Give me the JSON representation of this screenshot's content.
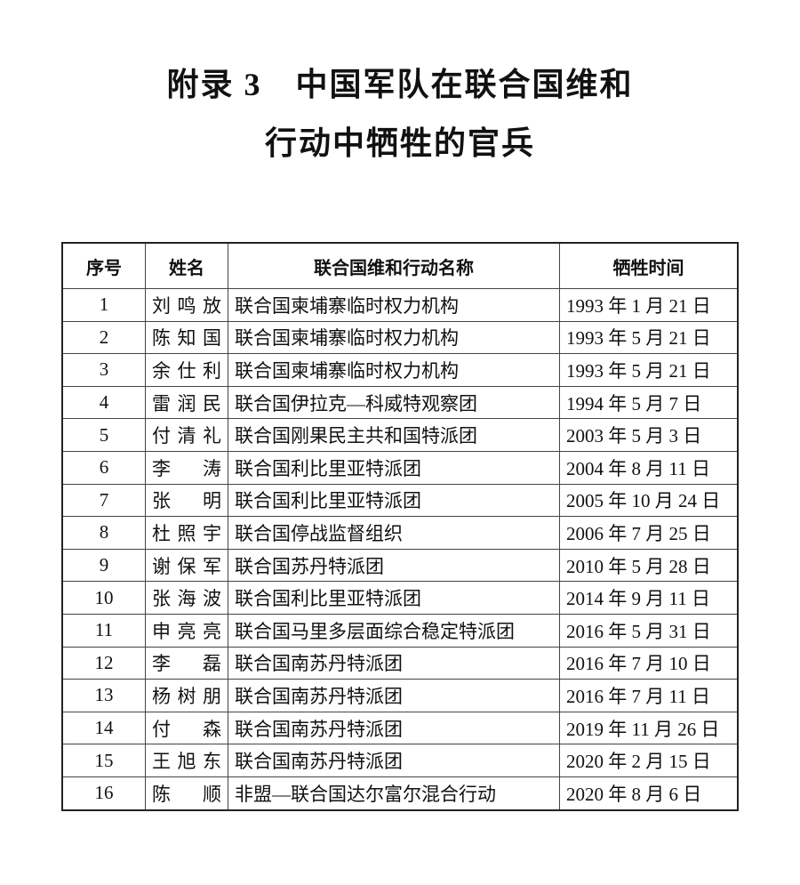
{
  "title": {
    "line1": "附录 3　中国军队在联合国维和",
    "line2": "行动中牺牲的官兵"
  },
  "table": {
    "headers": [
      "序号",
      "姓名",
      "联合国维和行动名称",
      "牺牲时间"
    ],
    "rows": [
      [
        "1",
        "刘鸣放",
        "联合国柬埔寨临时权力机构",
        "1993 年 1 月 21 日"
      ],
      [
        "2",
        "陈知国",
        "联合国柬埔寨临时权力机构",
        "1993 年 5 月 21 日"
      ],
      [
        "3",
        "余仕利",
        "联合国柬埔寨临时权力机构",
        "1993 年 5 月 21 日"
      ],
      [
        "4",
        "雷润民",
        "联合国伊拉克—科威特观察团",
        "1994 年 5 月 7 日"
      ],
      [
        "5",
        "付清礼",
        "联合国刚果民主共和国特派团",
        "2003 年 5 月 3 日"
      ],
      [
        "6",
        "李　涛",
        "联合国利比里亚特派团",
        "2004 年 8 月 11 日"
      ],
      [
        "7",
        "张　明",
        "联合国利比里亚特派团",
        "2005 年 10 月 24 日"
      ],
      [
        "8",
        "杜照宇",
        "联合国停战监督组织",
        "2006 年 7 月 25 日"
      ],
      [
        "9",
        "谢保军",
        "联合国苏丹特派团",
        "2010 年 5 月 28 日"
      ],
      [
        "10",
        "张海波",
        "联合国利比里亚特派团",
        "2014 年 9 月 11 日"
      ],
      [
        "11",
        "申亮亮",
        "联合国马里多层面综合稳定特派团",
        "2016 年 5 月 31 日"
      ],
      [
        "12",
        "李　磊",
        "联合国南苏丹特派团",
        "2016 年 7 月 10 日"
      ],
      [
        "13",
        "杨树朋",
        "联合国南苏丹特派团",
        "2016 年 7 月 11 日"
      ],
      [
        "14",
        "付　森",
        "联合国南苏丹特派团",
        "2019 年 11 月 26 日"
      ],
      [
        "15",
        "王旭东",
        "联合国南苏丹特派团",
        "2020 年 2 月 15 日"
      ],
      [
        "16",
        "陈　顺",
        "非盟—联合国达尔富尔混合行动",
        "2020 年 8 月 6 日"
      ]
    ]
  }
}
